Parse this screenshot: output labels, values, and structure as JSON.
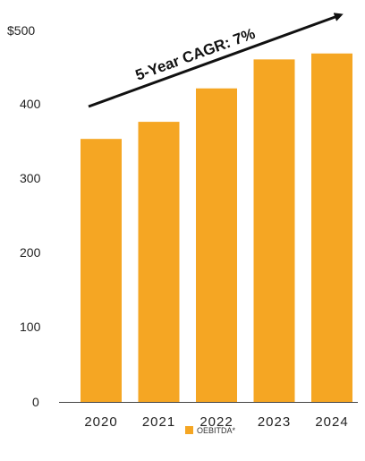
{
  "chart_data": {
    "type": "bar",
    "categories": [
      "2020",
      "2021",
      "2022",
      "2023",
      "2024"
    ],
    "series": [
      {
        "name": "OEBITDA*",
        "values": [
          354,
          377,
          422,
          461,
          469
        ],
        "color": "#F5A623"
      }
    ],
    "y_ticks": [
      "$500",
      "400",
      "300",
      "200",
      "100",
      "0"
    ],
    "ylim": [
      0,
      500
    ],
    "grid": false,
    "legend": {
      "position": "bottom-center",
      "label": "OEBITDA*"
    },
    "annotation": {
      "text": "5-Year CAGR: 7%",
      "arrow": "up-right"
    },
    "arrow_color": "#111111"
  }
}
